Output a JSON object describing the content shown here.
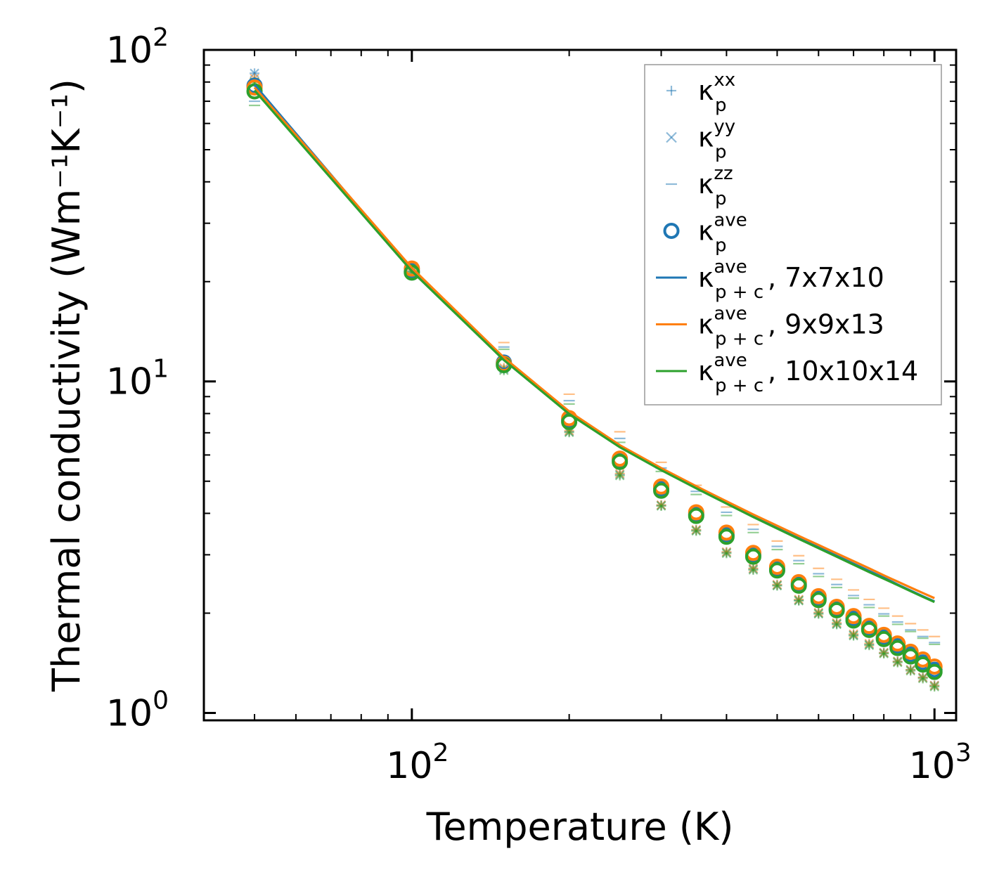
{
  "chart_data": {
    "type": "scatter",
    "title": "",
    "xlabel": "Temperature (K)",
    "ylabel": "Thermal conductivity (Wm⁻¹K⁻¹)",
    "xscale": "log",
    "yscale": "log",
    "xlim": [
      40,
      1100
    ],
    "ylim": [
      0.95,
      100
    ],
    "x_ticks": [
      {
        "base": "10",
        "exp": "2",
        "value": 100
      },
      {
        "base": "10",
        "exp": "3",
        "value": 1000
      }
    ],
    "y_ticks": [
      {
        "base": "10",
        "exp": "0",
        "value": 1
      },
      {
        "base": "10",
        "exp": "1",
        "value": 10
      },
      {
        "base": "10",
        "exp": "2",
        "value": 100
      }
    ],
    "temperatures": [
      50,
      100,
      150,
      200,
      250,
      300,
      350,
      400,
      450,
      500,
      550,
      600,
      650,
      700,
      750,
      800,
      850,
      900,
      950,
      1000
    ],
    "colors": {
      "blue": "#1f77b4",
      "orange": "#ff7f0e",
      "green": "#2ca02c",
      "xy_marker": "#6b8e3d"
    },
    "legend": {
      "position": "upper right",
      "entries": [
        {
          "symbol": "plus",
          "color": "#1f77b4",
          "alpha": 0.5,
          "label": "κ",
          "sub": "p",
          "sup": "xx",
          "suffix": ""
        },
        {
          "symbol": "cross",
          "color": "#1f77b4",
          "alpha": 0.5,
          "label": "κ",
          "sub": "p",
          "sup": "yy",
          "suffix": ""
        },
        {
          "symbol": "dash",
          "color": "#1f77b4",
          "alpha": 0.5,
          "label": "κ",
          "sub": "p",
          "sup": "zz",
          "suffix": ""
        },
        {
          "symbol": "circle",
          "color": "#1f77b4",
          "alpha": 1,
          "label": "κ",
          "sub": "p",
          "sup": "ave",
          "suffix": ""
        },
        {
          "symbol": "line",
          "color": "#1f77b4",
          "alpha": 1,
          "label": "κ",
          "sub": "p + c",
          "sup": "ave",
          "suffix": ", 7x7x10"
        },
        {
          "symbol": "line",
          "color": "#ff7f0e",
          "alpha": 1,
          "label": "κ",
          "sub": "p + c",
          "sup": "ave",
          "suffix": ", 9x9x13"
        },
        {
          "symbol": "line",
          "color": "#2ca02c",
          "alpha": 1,
          "label": "κ",
          "sub": "p + c",
          "sup": "ave",
          "suffix": ", 10x10x14"
        }
      ]
    },
    "series": [
      {
        "name": "kappa_p_xy 7x7x10",
        "kind": "xymarker",
        "color": "#1f77b4",
        "values": [
          85.0,
          21.5,
          10.9,
          7.06,
          5.24,
          4.23,
          3.56,
          3.05,
          2.72,
          2.43,
          2.19,
          2.0,
          1.86,
          1.72,
          1.61,
          1.52,
          1.43,
          1.35,
          1.28,
          1.21
        ]
      },
      {
        "name": "kappa_p_xy 9x9x13",
        "kind": "xymarker",
        "color": "#ff7f0e",
        "values": [
          82.0,
          21.7,
          11.0,
          7.1,
          5.27,
          4.24,
          3.57,
          3.06,
          2.73,
          2.44,
          2.2,
          2.01,
          1.87,
          1.73,
          1.62,
          1.52,
          1.43,
          1.35,
          1.28,
          1.21
        ]
      },
      {
        "name": "kappa_p_xy 10x10x14",
        "kind": "xymarker",
        "color": "#2ca02c",
        "values": [
          80.0,
          21.4,
          10.8,
          7.02,
          5.2,
          4.21,
          3.54,
          3.03,
          2.7,
          2.42,
          2.18,
          1.99,
          1.85,
          1.71,
          1.6,
          1.51,
          1.42,
          1.34,
          1.27,
          1.2
        ]
      },
      {
        "name": "kappa_p_zz 7x7x10",
        "kind": "dash",
        "color": "#1f77b4",
        "values": [
          70.0,
          22.6,
          12.7,
          8.75,
          6.73,
          5.48,
          4.66,
          4.03,
          3.58,
          3.18,
          2.88,
          2.63,
          2.44,
          2.26,
          2.12,
          1.99,
          1.88,
          1.78,
          1.7,
          1.63
        ]
      },
      {
        "name": "kappa_p_zz 9x9x13",
        "kind": "dash",
        "color": "#ff7f0e",
        "values": [
          72.0,
          22.8,
          13.1,
          9.15,
          7.05,
          5.7,
          4.86,
          4.18,
          3.7,
          3.3,
          2.98,
          2.73,
          2.53,
          2.35,
          2.2,
          2.07,
          1.96,
          1.86,
          1.78,
          1.7
        ]
      },
      {
        "name": "kappa_p_zz 10x10x14",
        "kind": "dash",
        "color": "#2ca02c",
        "values": [
          68.0,
          22.2,
          12.5,
          8.55,
          6.55,
          5.35,
          4.56,
          3.94,
          3.5,
          3.11,
          2.82,
          2.58,
          2.39,
          2.22,
          2.08,
          1.96,
          1.85,
          1.76,
          1.68,
          1.61
        ]
      },
      {
        "name": "kappa_p_ave 7x7x10",
        "kind": "circle",
        "color": "#1f77b4",
        "values": [
          78.0,
          21.5,
          11.4,
          7.65,
          5.8,
          4.75,
          3.98,
          3.45,
          3.0,
          2.72,
          2.45,
          2.22,
          2.06,
          1.93,
          1.8,
          1.69,
          1.59,
          1.5,
          1.42,
          1.35
        ]
      },
      {
        "name": "kappa_p_ave 9x9x13",
        "kind": "circle",
        "color": "#ff7f0e",
        "values": [
          77.0,
          21.9,
          11.3,
          7.75,
          5.85,
          4.82,
          4.03,
          3.5,
          3.04,
          2.76,
          2.48,
          2.25,
          2.09,
          1.96,
          1.83,
          1.72,
          1.62,
          1.53,
          1.45,
          1.38
        ]
      },
      {
        "name": "kappa_p_ave 10x10x14",
        "kind": "circle",
        "color": "#2ca02c",
        "values": [
          75.0,
          21.3,
          11.2,
          7.55,
          5.72,
          4.68,
          3.93,
          3.4,
          2.96,
          2.69,
          2.42,
          2.19,
          2.04,
          1.9,
          1.78,
          1.67,
          1.57,
          1.48,
          1.4,
          1.33
        ]
      },
      {
        "name": "kappa_p+c_ave 7x7x10",
        "kind": "line",
        "color": "#1f77b4",
        "values": [
          78.5,
          21.7,
          11.6,
          8.0,
          6.35,
          5.42,
          4.78,
          4.3,
          3.92,
          3.62,
          3.37,
          3.16,
          2.98,
          2.82,
          2.68,
          2.56,
          2.44,
          2.34,
          2.25,
          2.17
        ]
      },
      {
        "name": "kappa_p+c_ave 9x9x13",
        "kind": "line",
        "color": "#ff7f0e",
        "values": [
          77.0,
          22.0,
          11.8,
          8.12,
          6.42,
          5.48,
          4.83,
          4.35,
          3.97,
          3.67,
          3.42,
          3.21,
          3.03,
          2.87,
          2.73,
          2.6,
          2.49,
          2.39,
          2.3,
          2.22
        ]
      },
      {
        "name": "kappa_p+c_ave 10x10x14",
        "kind": "line",
        "color": "#2ca02c",
        "values": [
          75.5,
          21.5,
          11.6,
          7.98,
          6.33,
          5.4,
          4.76,
          4.28,
          3.9,
          3.6,
          3.35,
          3.14,
          2.96,
          2.8,
          2.66,
          2.54,
          2.43,
          2.33,
          2.24,
          2.16
        ]
      }
    ]
  }
}
